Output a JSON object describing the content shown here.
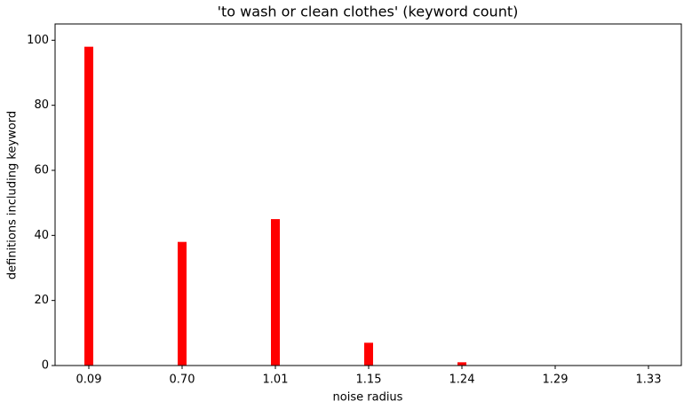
{
  "chart_data": {
    "type": "bar",
    "title": "'to wash or clean clothes' (keyword count)",
    "x_label": "noise radius",
    "y_label": "definitions including keyword",
    "categories": [
      "0.09",
      "0.70",
      "1.01",
      "1.15",
      "1.24",
      "1.29",
      "1.33"
    ],
    "values": [
      98,
      38,
      45,
      7,
      1,
      0,
      0
    ],
    "color": "#ff0000",
    "ylim": [
      0,
      105
    ],
    "yticks": [
      0,
      20,
      40,
      60,
      80,
      100
    ],
    "grid": false
  }
}
